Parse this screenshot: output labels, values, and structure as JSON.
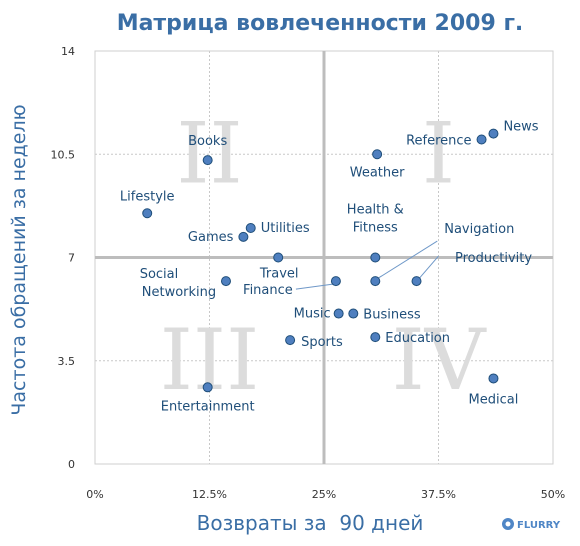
{
  "brand": "FLURRY",
  "brand_icon": "flurry-logo-icon",
  "colors": {
    "title": "#3a6ea5",
    "point_fill": "#4f7fbf",
    "point_stroke": "#1f4e79",
    "quadrant_divider": "#bdbdbd",
    "quadrant_numeral": "#dcdcdc"
  },
  "chart_data": {
    "type": "scatter",
    "title": "Матрица вовлеченности 2009 г.",
    "xlabel": "Возвраты за  90 дней",
    "ylabel": "Частота обращений за неделю",
    "xlim": [
      0,
      50
    ],
    "ylim": [
      0,
      14
    ],
    "x_ticks": [
      {
        "value": 0,
        "label": "0%"
      },
      {
        "value": 12.5,
        "label": "12.5%"
      },
      {
        "value": 25,
        "label": "25%"
      },
      {
        "value": 37.5,
        "label": "37.5%"
      },
      {
        "value": 50,
        "label": "50%"
      }
    ],
    "y_ticks": [
      {
        "value": 0,
        "label": "0"
      },
      {
        "value": 3.5,
        "label": "3.5"
      },
      {
        "value": 7,
        "label": "7"
      },
      {
        "value": 10.5,
        "label": "10.5"
      },
      {
        "value": 14,
        "label": "14"
      }
    ],
    "grid": true,
    "quadrant_dividers": {
      "x": 25,
      "y": 7
    },
    "quadrants": [
      {
        "numeral": "I",
        "x": 37.5,
        "y": 10.5
      },
      {
        "numeral": "II",
        "x": 12.5,
        "y": 10.5
      },
      {
        "numeral": "III",
        "x": 12.5,
        "y": 3.5
      },
      {
        "numeral": "IV",
        "x": 37.5,
        "y": 3.5
      }
    ],
    "points": [
      {
        "name": "News",
        "x": 43.5,
        "y": 11.2
      },
      {
        "name": "Reference",
        "x": 42.2,
        "y": 11.0
      },
      {
        "name": "Weather",
        "x": 30.8,
        "y": 10.5
      },
      {
        "name": "Books",
        "x": 12.3,
        "y": 10.3
      },
      {
        "name": "Lifestyle",
        "x": 5.7,
        "y": 8.5
      },
      {
        "name": "Utilities",
        "x": 17.0,
        "y": 8.0
      },
      {
        "name": "Games",
        "x": 16.2,
        "y": 7.7
      },
      {
        "name": "Travel",
        "x": 20.0,
        "y": 7.0
      },
      {
        "name": "Health & Fitness",
        "x": 30.6,
        "y": 7.0
      },
      {
        "name": "Navigation",
        "x": 30.6,
        "y": 6.2
      },
      {
        "name": "Productivity",
        "x": 35.1,
        "y": 6.2
      },
      {
        "name": "Finance",
        "x": 26.3,
        "y": 6.2
      },
      {
        "name": "Social Networking",
        "x": 14.3,
        "y": 6.2
      },
      {
        "name": "Music",
        "x": 26.6,
        "y": 5.1
      },
      {
        "name": "Business",
        "x": 28.2,
        "y": 5.1
      },
      {
        "name": "Education",
        "x": 30.6,
        "y": 4.3
      },
      {
        "name": "Sports",
        "x": 21.3,
        "y": 4.2
      },
      {
        "name": "Medical",
        "x": 43.5,
        "y": 2.9
      },
      {
        "name": "Entertainment",
        "x": 12.3,
        "y": 2.6
      }
    ]
  }
}
